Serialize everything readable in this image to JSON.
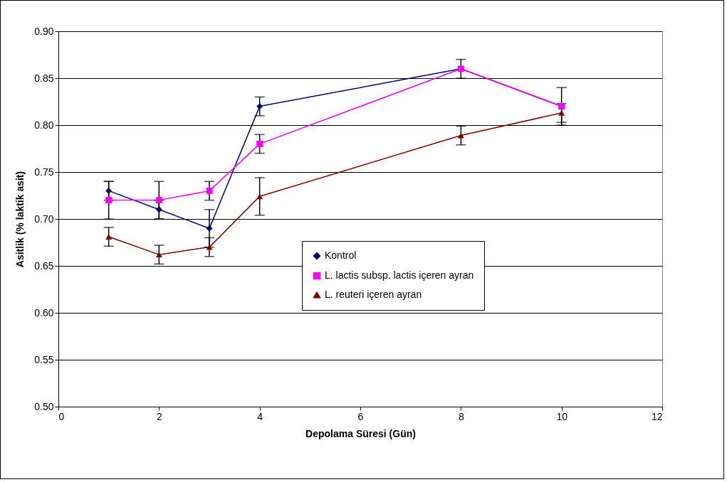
{
  "chart_data": {
    "type": "line",
    "xlabel": "Depolama Süresi (Gün)",
    "ylabel": "Asitlik (% laktik asit)",
    "x": [
      1,
      2,
      3,
      4,
      8,
      10
    ],
    "xlim": [
      0,
      12
    ],
    "xticks": [
      0,
      2,
      4,
      6,
      8,
      10,
      12
    ],
    "ylim": [
      0.5,
      0.9
    ],
    "yticks": [
      {
        "value": 0.5,
        "label": "0.50"
      },
      0.55,
      {
        "value": 0.6,
        "label": "0.60"
      },
      0.65,
      {
        "value": 0.7,
        "label": "0.70"
      },
      0.75,
      {
        "value": 0.8,
        "label": "0.80"
      },
      0.85,
      {
        "value": 0.9,
        "label": "0.90"
      }
    ],
    "grid": "y",
    "legend": "right",
    "line_style": "solid",
    "series": [
      {
        "name": "Kontrol",
        "color": "#000080",
        "marker": "diamond",
        "values": [
          0.73,
          0.71,
          0.69,
          0.82,
          0.86,
          0.82
        ],
        "errors": [
          0.01,
          0.01,
          0.02,
          0.01,
          0.01,
          0.02
        ]
      },
      {
        "name": "L. lactis subsp. lactis içeren ayran",
        "color": "#ff00ff",
        "marker": "square",
        "values": [
          0.72,
          0.72,
          0.73,
          0.78,
          0.86,
          0.82
        ],
        "errors": [
          0.02,
          0.02,
          0.01,
          0.01,
          null,
          null
        ]
      },
      {
        "name": "L. reuteri içeren ayran",
        "color": "#800000",
        "marker": "triangle",
        "values": [
          0.681,
          0.662,
          0.67,
          0.724,
          0.789,
          0.813
        ],
        "errors": [
          0.01,
          0.01,
          0.01,
          0.02,
          0.01,
          0.01
        ]
      }
    ]
  }
}
